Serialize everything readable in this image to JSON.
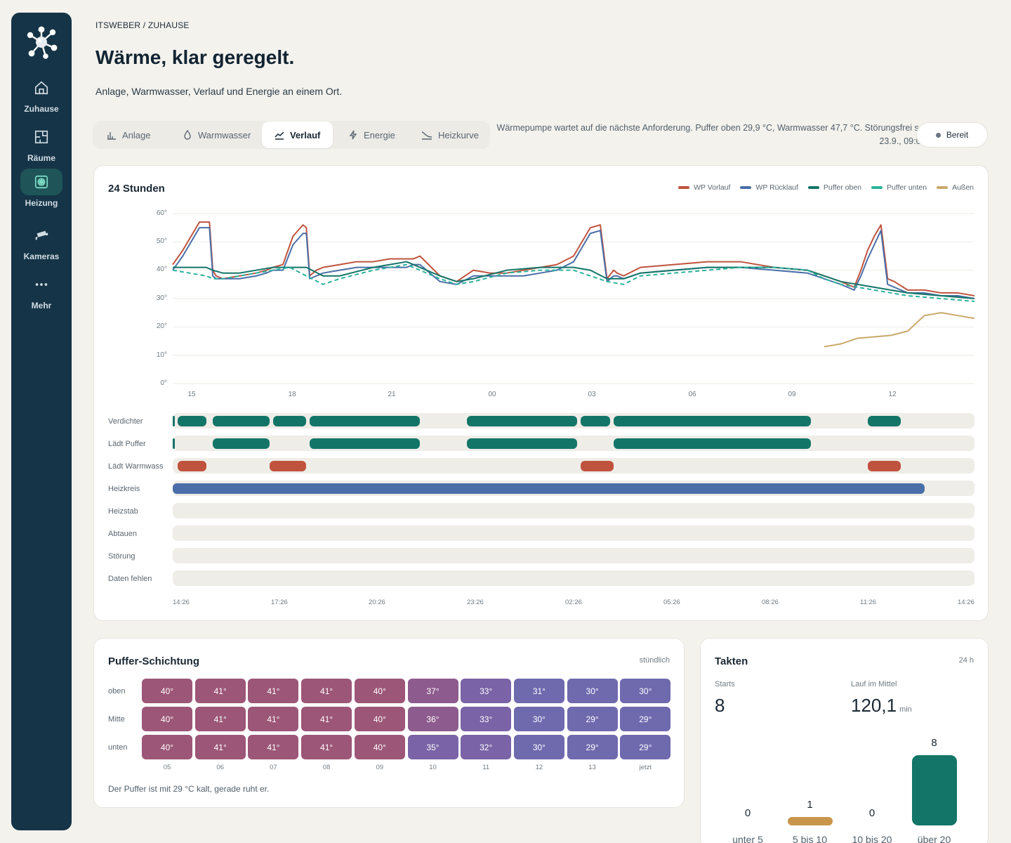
{
  "nav": {
    "items": [
      {
        "label": "Zuhause",
        "icon": "home-icon"
      },
      {
        "label": "Räume",
        "icon": "floorplan-icon"
      },
      {
        "label": "Heizung",
        "icon": "heating-icon",
        "active": true
      },
      {
        "label": "Kameras",
        "icon": "camera-icon"
      },
      {
        "label": "Mehr",
        "icon": "more-icon"
      }
    ]
  },
  "header": {
    "breadcrumb": "ITSWEBER / ZUHAUSE",
    "title": "Wärme, klar geregelt.",
    "subtitle": "Anlage, Warmwasser, Verlauf und Energie an einem Ort."
  },
  "tabs": [
    {
      "label": "Anlage",
      "icon": "bar-chart-icon"
    },
    {
      "label": "Warmwasser",
      "icon": "drop-icon"
    },
    {
      "label": "Verlauf",
      "icon": "trend-icon",
      "active": true
    },
    {
      "label": "Energie",
      "icon": "bolt-icon"
    },
    {
      "label": "Heizkurve",
      "icon": "curve-icon"
    }
  ],
  "status": {
    "text": "Wärmepumpe wartet auf die nächste Anforderung. Puffer oben 29,9 °C, Warmwasser 47,7 °C. Störungsfrei seit 23.9., 09:09.",
    "badge": "Bereit"
  },
  "history": {
    "title": "24 Stunden",
    "colors": {
      "wp_vorlauf": "#c0533e",
      "wp_ruecklauf": "#4a6fa8",
      "puffer_oben": "#137568",
      "puffer_unten": "#2ab39c",
      "aussen": "#c9a96a"
    },
    "legend": [
      "WP Vorlauf",
      "WP Rücklauf",
      "Puffer oben",
      "Puffer unten",
      "Außen"
    ],
    "y_ticks": [
      "60°",
      "50°",
      "40°",
      "30°",
      "20°",
      "10°",
      "0°"
    ],
    "x_ticks": [
      "15",
      "18",
      "21",
      "00",
      "03",
      "06",
      "09",
      "12"
    ],
    "lane_labels": [
      "Verdichter",
      "Lädt Puffer",
      "Lädt Warmwass",
      "Heizkreis",
      "Heizstab",
      "Abtauen",
      "Störung",
      "Daten fehlen"
    ],
    "time_labels": [
      "14:26",
      "17:26",
      "20:26",
      "23:26",
      "02:26",
      "05:26",
      "08:26",
      "11:26",
      "14:26"
    ]
  },
  "chart_data": {
    "type": "line",
    "ylim": [
      0,
      60
    ],
    "x_unit": "hours since 14:26",
    "series": [
      {
        "name": "WP Vorlauf",
        "color": "#c0533e",
        "x": [
          0,
          0.3,
          0.5,
          0.8,
          1.1,
          1.2,
          1.3,
          1.5,
          2,
          2.5,
          2.8,
          3,
          3.3,
          3.6,
          3.9,
          4,
          4.1,
          4.3,
          4.5,
          5,
          5.5,
          6,
          6.5,
          7,
          7.2,
          7.4,
          8,
          8.5,
          9,
          9.5,
          10,
          10.5,
          11,
          11.5,
          12,
          12.5,
          12.8,
          13,
          13.2,
          13.3,
          13.5,
          14,
          15,
          16,
          17,
          18,
          19,
          19.5,
          20,
          20.2,
          20.4,
          20.6,
          20.8,
          21,
          21.2,
          21.4,
          21.6,
          22,
          22.5,
          23,
          23.5,
          24
        ],
        "y": [
          42,
          47,
          51,
          57,
          57,
          40,
          38,
          37,
          38,
          39,
          40,
          41,
          42,
          52,
          56,
          55,
          38,
          40,
          41,
          42,
          43,
          43,
          44,
          44,
          44,
          45,
          38,
          36,
          40,
          39,
          39,
          40,
          41,
          42,
          45,
          55,
          56,
          37,
          40,
          39,
          38,
          41,
          42,
          43,
          43,
          41,
          40,
          38,
          36,
          35,
          34,
          40,
          47,
          52,
          56,
          37,
          36,
          33,
          33,
          32,
          32,
          31
        ]
      },
      {
        "name": "WP Rücklauf",
        "color": "#4a6fa8",
        "x": [
          0,
          0.3,
          0.5,
          0.8,
          1.1,
          1.2,
          1.3,
          1.5,
          2,
          2.5,
          2.8,
          3,
          3.3,
          3.6,
          3.9,
          4,
          4.1,
          4.3,
          4.5,
          5,
          5.5,
          6,
          6.5,
          7,
          7.2,
          7.4,
          8,
          8.5,
          9,
          9.5,
          10,
          10.5,
          11,
          11.5,
          12,
          12.5,
          12.8,
          13,
          13.2,
          13.3,
          13.5,
          14,
          15,
          16,
          17,
          18,
          19,
          19.5,
          20,
          20.2,
          20.4,
          20.6,
          20.8,
          21,
          21.2,
          21.4,
          21.6,
          22,
          22.5,
          23,
          23.5,
          24
        ],
        "y": [
          40,
          45,
          49,
          55,
          55,
          38,
          37,
          37,
          37,
          38,
          39,
          40,
          40,
          49,
          53,
          53,
          37,
          38,
          39,
          40,
          41,
          41,
          41,
          41,
          42,
          42,
          36,
          35,
          38,
          38,
          38,
          38,
          39,
          40,
          43,
          53,
          54,
          36,
          38,
          38,
          37,
          39,
          40,
          41,
          41,
          40,
          39,
          37,
          35,
          34,
          33,
          38,
          44,
          49,
          54,
          35,
          34,
          32,
          32,
          31,
          31,
          30
        ]
      },
      {
        "name": "Puffer oben",
        "color": "#137568",
        "x": [
          0,
          0.5,
          1,
          1.2,
          1.5,
          2,
          3,
          3.5,
          4,
          4.5,
          5,
          6,
          6.5,
          7,
          8,
          8.5,
          9,
          10,
          11,
          12,
          12.5,
          13,
          13.5,
          14,
          15,
          16,
          17,
          18,
          19,
          19.5,
          20,
          21,
          22,
          23,
          24
        ],
        "y": [
          41,
          41,
          41,
          40,
          39,
          39,
          41,
          41,
          41,
          38,
          38,
          41,
          42,
          43,
          38,
          36,
          37,
          40,
          41,
          41,
          40,
          37,
          37,
          39,
          40,
          41,
          41,
          41,
          40,
          38,
          36,
          34,
          32,
          31,
          30
        ]
      },
      {
        "name": "Puffer unten",
        "color": "#2ab39c",
        "x": [
          0,
          0.5,
          1,
          1.2,
          1.5,
          2,
          3,
          3.5,
          4,
          4.5,
          5,
          6,
          6.5,
          7,
          8,
          8.5,
          9,
          10,
          11,
          12,
          12.5,
          13,
          13.5,
          14,
          15,
          16,
          17,
          18,
          19,
          19.5,
          20,
          21,
          22,
          23,
          24
        ],
        "y": [
          40,
          39,
          38,
          37,
          37,
          38,
          40,
          41,
          38,
          35,
          37,
          40,
          41,
          42,
          37,
          35,
          36,
          39,
          40,
          40,
          38,
          36,
          35,
          38,
          39,
          40,
          41,
          41,
          40,
          37,
          35,
          33,
          31,
          30,
          29
        ]
      },
      {
        "name": "Außen",
        "color": "#c9a96a",
        "x": [
          19.5,
          20,
          20.5,
          21,
          21.5,
          22,
          22.5,
          23,
          23.5,
          24
        ],
        "y": [
          13,
          14,
          16,
          16.5,
          17,
          18.5,
          24,
          25,
          24,
          23
        ]
      }
    ],
    "lanes": [
      {
        "name": "Verdichter",
        "color": "#137568",
        "spans": [
          [
            0,
            0.05
          ],
          [
            0.15,
            1
          ],
          [
            1.2,
            2.9
          ],
          [
            3,
            4
          ],
          [
            4.1,
            7.4
          ],
          [
            8.8,
            12.1
          ],
          [
            12.2,
            13.1
          ],
          [
            13.2,
            19.1
          ],
          [
            20.8,
            21.8
          ]
        ]
      },
      {
        "name": "Lädt Puffer",
        "color": "#137568",
        "spans": [
          [
            0,
            0.05
          ],
          [
            1.2,
            2.9
          ],
          [
            4.1,
            7.4
          ],
          [
            8.8,
            12.1
          ],
          [
            13.2,
            19.1
          ]
        ]
      },
      {
        "name": "Lädt Warmwass",
        "color": "#c0533e",
        "spans": [
          [
            0.15,
            1
          ],
          [
            2.9,
            4
          ],
          [
            12.2,
            13.2
          ],
          [
            20.8,
            21.8
          ]
        ]
      },
      {
        "name": "Heizkreis",
        "color": "#4a6fa8",
        "spans": [
          [
            0,
            22.5
          ]
        ]
      },
      {
        "name": "Heizstab",
        "color": "#4a6fa8",
        "spans": []
      },
      {
        "name": "Abtauen",
        "color": "#4a6fa8",
        "spans": []
      },
      {
        "name": "Störung",
        "color": "#4a6fa8",
        "spans": []
      },
      {
        "name": "Daten fehlen",
        "color": "#4a6fa8",
        "spans": []
      }
    ]
  },
  "puffer": {
    "title": "Puffer-Schichtung",
    "interval": "stündlich",
    "row_labels": [
      "oben",
      "Mitte",
      "unten"
    ],
    "columns": [
      "05",
      "06",
      "07",
      "08",
      "09",
      "10",
      "11",
      "12",
      "13",
      "jetzt"
    ],
    "rows": [
      [
        "40°",
        "41°",
        "41°",
        "41°",
        "40°",
        "37°",
        "33°",
        "31°",
        "30°",
        "30°"
      ],
      [
        "40°",
        "41°",
        "41°",
        "41°",
        "40°",
        "36°",
        "33°",
        "30°",
        "29°",
        "29°"
      ],
      [
        "40°",
        "41°",
        "41°",
        "41°",
        "40°",
        "35°",
        "32°",
        "30°",
        "29°",
        "29°"
      ]
    ],
    "note": "Der Puffer ist mit 29 °C kalt, gerade ruht er."
  },
  "takten": {
    "title": "Takten",
    "period": "24 h",
    "starts_label": "Starts",
    "starts_value": "8",
    "run_label": "Lauf im Mittel",
    "run_value": "120,1",
    "run_unit": "min",
    "buckets": [
      {
        "label": "unter 5",
        "count": "0",
        "color": "#137568"
      },
      {
        "label": "5 bis 10",
        "count": "1",
        "color": "#c9954a"
      },
      {
        "label": "10 bis 20",
        "count": "0",
        "color": "#137568"
      },
      {
        "label": "über 20",
        "count": "8",
        "color": "#137568"
      }
    ]
  }
}
